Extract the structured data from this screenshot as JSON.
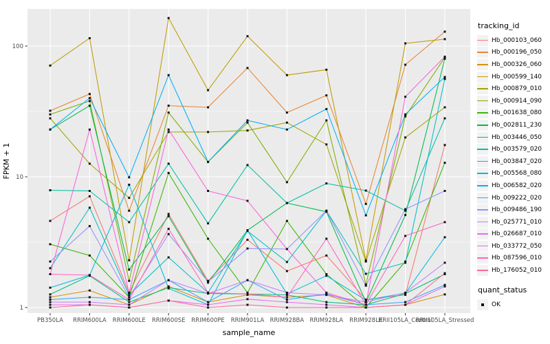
{
  "figure": {
    "background": "#FFFFFF",
    "panel_background": "#EBEBEB",
    "grid_color": "#FFFFFF",
    "axis_text_color": "#4D4D4D",
    "axis_title_color": "#000000",
    "point_color": "#111111"
  },
  "chart_data": {
    "type": "line",
    "title": "",
    "xlabel": "sample_name",
    "ylabel": "FPKM + 1",
    "y_scale": "log10",
    "ylim": [
      0.91,
      192
    ],
    "grid": true,
    "legend_position": "right",
    "y_ticks": [
      1,
      10,
      100
    ],
    "y_tick_labels": [
      "1",
      "10",
      "100"
    ],
    "y_minor_ticks": [
      3.1623,
      31.623
    ],
    "categories": [
      "PB350LA",
      "RRIM600LA",
      "RRIM600LE",
      "RRIM600SE",
      "RRIM600PE",
      "RRIM901LA",
      "RRIM928BA",
      "RRIM928LA",
      "RRIM928LE",
      "RRII105LA_Control",
      "RRII105LA_Stressed"
    ],
    "legend": {
      "title": "tracking_id"
    },
    "quant_legend": {
      "title": "quant_status",
      "items": [
        {
          "label": "OK",
          "marker": "black-square"
        }
      ]
    },
    "series": [
      {
        "name": "Hb_000103_060",
        "color": "#F8766D",
        "values": [
          4.6,
          7.1,
          1.3,
          5.2,
          1.6,
          3.3,
          1.9,
          2.5,
          1.15,
          1.25,
          17.5
        ]
      },
      {
        "name": "Hb_000196_050",
        "color": "#EA8331",
        "values": [
          32,
          43,
          5.5,
          35,
          34,
          68,
          31,
          42,
          6.2,
          72,
          129
        ]
      },
      {
        "name": "Hb_000326_060",
        "color": "#D89000",
        "values": [
          1.2,
          1.35,
          1.05,
          1.45,
          1.1,
          1.25,
          1.2,
          1.25,
          1.0,
          1.05,
          1.26
        ]
      },
      {
        "name": "Hb_000599_140",
        "color": "#C09B00",
        "values": [
          71,
          115,
          2.3,
          164,
          46,
          119,
          60,
          66,
          2.3,
          105,
          113
        ]
      },
      {
        "name": "Hb_000879_010",
        "color": "#A3A500",
        "values": [
          28,
          12.6,
          6.9,
          22,
          22,
          22.6,
          26,
          17.7,
          2.25,
          20,
          34
        ]
      },
      {
        "name": "Hb_000914_090",
        "color": "#7CAE00",
        "values": [
          30,
          38,
          1.6,
          31,
          13,
          26,
          9.1,
          27,
          1.5,
          29,
          82
        ]
      },
      {
        "name": "Hb_001638_080",
        "color": "#39B600",
        "values": [
          3.05,
          2.5,
          1.2,
          10.7,
          3.36,
          1.3,
          4.6,
          1.8,
          1.0,
          2.25,
          12.8
        ]
      },
      {
        "name": "Hb_002811_230",
        "color": "#00BB4E",
        "values": [
          23,
          35,
          1.95,
          5.0,
          1.55,
          3.9,
          6.3,
          5.4,
          1.1,
          5.1,
          80
        ]
      },
      {
        "name": "Hb_003446_050",
        "color": "#00BF7D",
        "values": [
          1.26,
          1.75,
          1.1,
          1.42,
          1.28,
          1.27,
          1.25,
          1.1,
          1.05,
          1.28,
          1.8
        ]
      },
      {
        "name": "Hb_003579_020",
        "color": "#00C1A3",
        "values": [
          7.9,
          7.8,
          4.5,
          12.6,
          4.4,
          12.3,
          6.3,
          8.9,
          7.85,
          5.5,
          28
        ]
      },
      {
        "name": "Hb_003847_020",
        "color": "#00BFC4",
        "values": [
          2.0,
          5.8,
          1.25,
          2.42,
          1.3,
          3.85,
          2.23,
          5.5,
          1.81,
          2.2,
          56
        ]
      },
      {
        "name": "Hb_005568_080",
        "color": "#00BAE0",
        "values": [
          1.42,
          1.77,
          8.7,
          1.4,
          1.05,
          3.9,
          1.27,
          1.75,
          1.14,
          1.29,
          3.45
        ]
      },
      {
        "name": "Hb_006582_020",
        "color": "#00B0F6",
        "values": [
          23,
          40,
          9.9,
          60,
          13,
          27,
          23,
          33,
          5.07,
          30,
          58
        ]
      },
      {
        "name": "Hb_009222_020",
        "color": "#35A2FF",
        "values": [
          1.15,
          1.2,
          1.15,
          1.62,
          1.1,
          1.62,
          1.15,
          1.27,
          1.05,
          1.1,
          1.49
        ]
      },
      {
        "name": "Hb_009486_190",
        "color": "#9590FF",
        "values": [
          2.25,
          4.2,
          1.2,
          3.65,
          1.58,
          2.83,
          2.8,
          5.5,
          1.47,
          5.66,
          7.8
        ]
      },
      {
        "name": "Hb_025771_010",
        "color": "#C77CFF",
        "values": [
          1.1,
          1.1,
          1.05,
          1.62,
          1.28,
          1.62,
          1.3,
          1.25,
          1.1,
          1.3,
          2.2
        ]
      },
      {
        "name": "Hb_026687_010",
        "color": "#E76BF3",
        "values": [
          1.05,
          1.05,
          1.0,
          1.13,
          1.05,
          1.16,
          1.1,
          1.05,
          1.0,
          1.05,
          1.45
        ]
      },
      {
        "name": "Hb_033772_050",
        "color": "#FA62DB",
        "values": [
          1.8,
          23,
          1.3,
          23,
          7.8,
          6.55,
          2.8,
          1.3,
          1.05,
          41,
          83
        ]
      },
      {
        "name": "Hb_087596_010",
        "color": "#FF62BC",
        "values": [
          1.8,
          1.77,
          1.15,
          4.0,
          1.3,
          1.27,
          1.2,
          3.36,
          1.05,
          3.53,
          4.5
        ]
      },
      {
        "name": "Hb_176052_010",
        "color": "#FF6A98",
        "values": [
          1.0,
          1.05,
          1.0,
          1.13,
          1.0,
          1.05,
          1.0,
          1.0,
          1.0,
          1.05,
          1.83
        ]
      }
    ]
  }
}
